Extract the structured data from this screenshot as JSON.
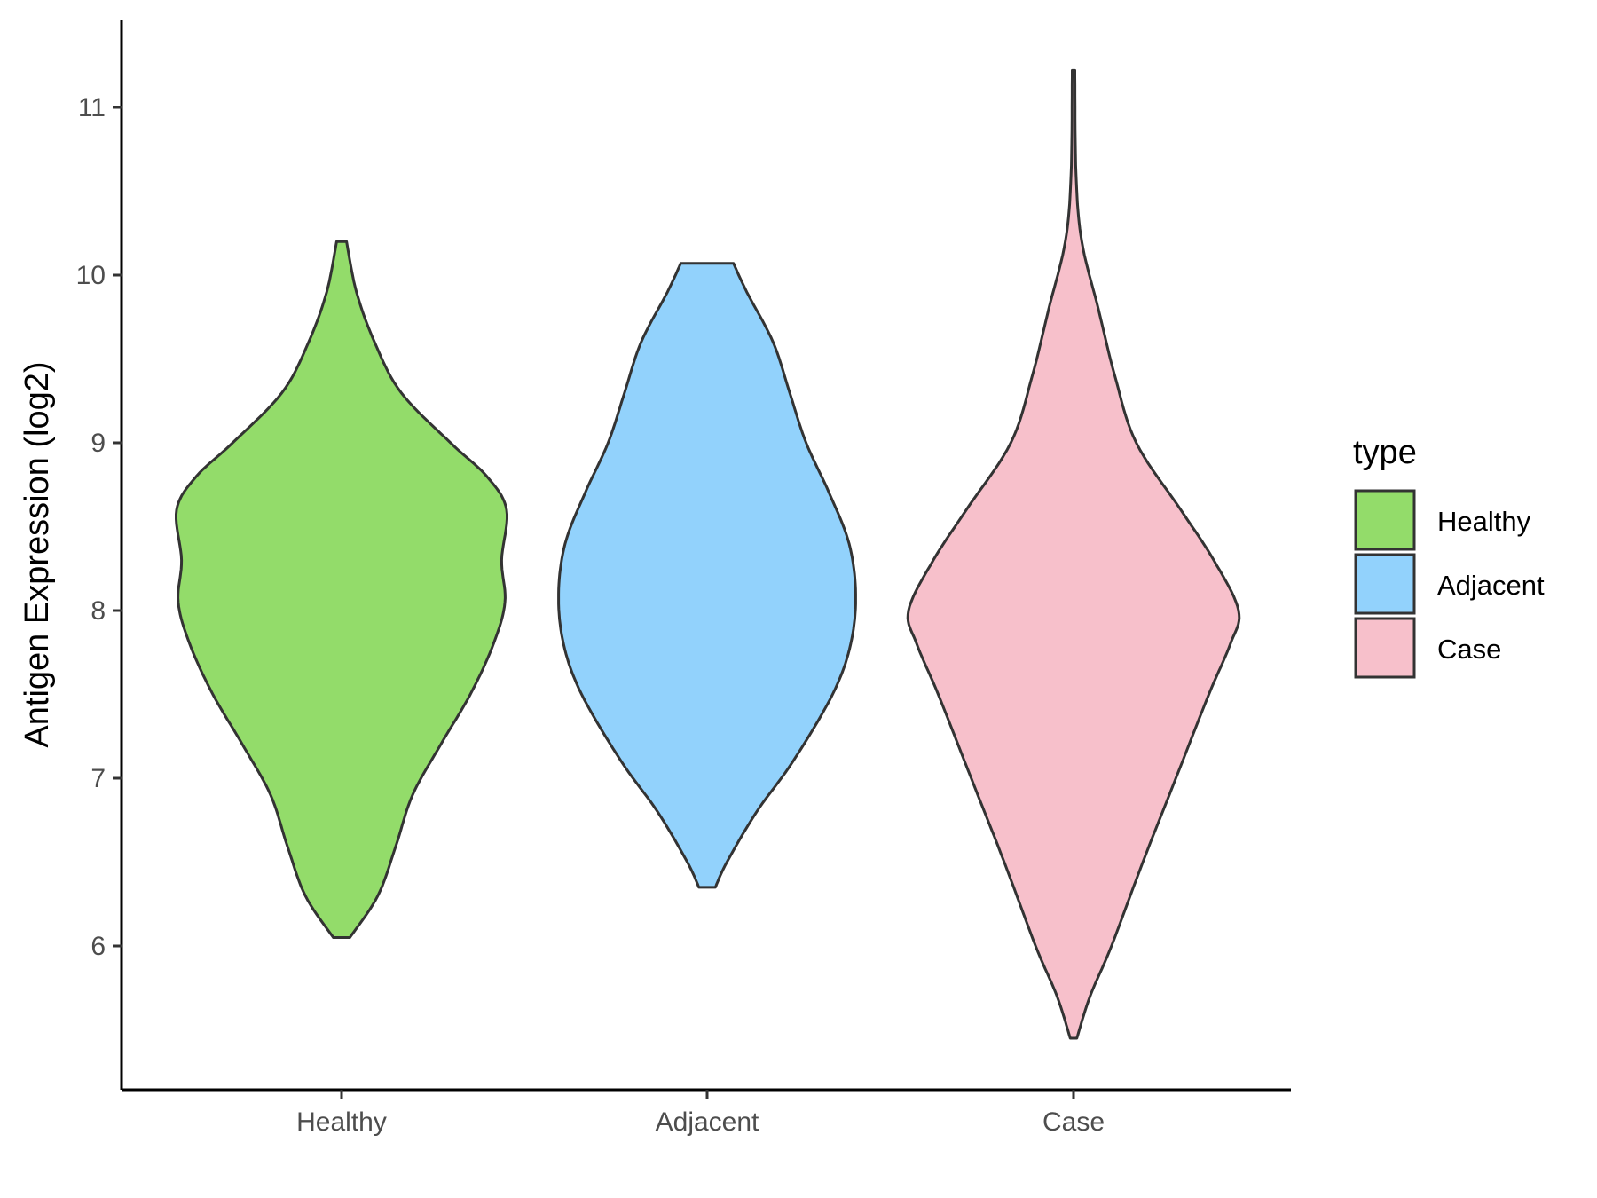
{
  "chart_data": {
    "type": "violin",
    "title": "",
    "xlabel": "",
    "ylabel": "Antigen Expression (log2)",
    "ylim": [
      5.2,
      11.5
    ],
    "yticks": [
      6,
      7,
      8,
      9,
      10,
      11
    ],
    "grid": false,
    "categories": [
      "Healthy",
      "Adjacent",
      "Case"
    ],
    "legend": {
      "title": "type",
      "placement": "right",
      "entries": [
        "Healthy",
        "Adjacent",
        "Case"
      ]
    },
    "series": [
      {
        "category": "Healthy",
        "color": "#93dc6a",
        "min": 6.05,
        "max": 10.2,
        "profile": [
          [
            6.05,
            0.05
          ],
          [
            6.3,
            0.22
          ],
          [
            6.6,
            0.33
          ],
          [
            6.9,
            0.43
          ],
          [
            7.2,
            0.6
          ],
          [
            7.5,
            0.78
          ],
          [
            7.8,
            0.92
          ],
          [
            8.05,
            0.99
          ],
          [
            8.3,
            0.97
          ],
          [
            8.6,
            1.0
          ],
          [
            8.8,
            0.88
          ],
          [
            9.0,
            0.66
          ],
          [
            9.3,
            0.36
          ],
          [
            9.6,
            0.2
          ],
          [
            9.9,
            0.09
          ],
          [
            10.2,
            0.03
          ]
        ]
      },
      {
        "category": "Adjacent",
        "color": "#92d2fc",
        "min": 6.35,
        "max": 10.07,
        "profile": [
          [
            6.35,
            0.05
          ],
          [
            6.5,
            0.12
          ],
          [
            6.8,
            0.3
          ],
          [
            7.1,
            0.52
          ],
          [
            7.5,
            0.76
          ],
          [
            7.8,
            0.87
          ],
          [
            8.1,
            0.9
          ],
          [
            8.4,
            0.86
          ],
          [
            8.7,
            0.74
          ],
          [
            9.0,
            0.6
          ],
          [
            9.3,
            0.5
          ],
          [
            9.6,
            0.4
          ],
          [
            9.9,
            0.24
          ],
          [
            10.07,
            0.16
          ]
        ]
      },
      {
        "category": "Case",
        "color": "#f7c0cb",
        "min": 5.45,
        "max": 11.22,
        "profile": [
          [
            5.45,
            0.02
          ],
          [
            5.7,
            0.1
          ],
          [
            6.0,
            0.23
          ],
          [
            6.5,
            0.42
          ],
          [
            7.0,
            0.62
          ],
          [
            7.5,
            0.82
          ],
          [
            7.8,
            0.95
          ],
          [
            8.0,
            1.0
          ],
          [
            8.3,
            0.85
          ],
          [
            8.6,
            0.65
          ],
          [
            9.0,
            0.38
          ],
          [
            9.4,
            0.25
          ],
          [
            9.8,
            0.15
          ],
          [
            10.2,
            0.05
          ],
          [
            10.6,
            0.015
          ],
          [
            11.22,
            0.008
          ]
        ]
      }
    ]
  }
}
